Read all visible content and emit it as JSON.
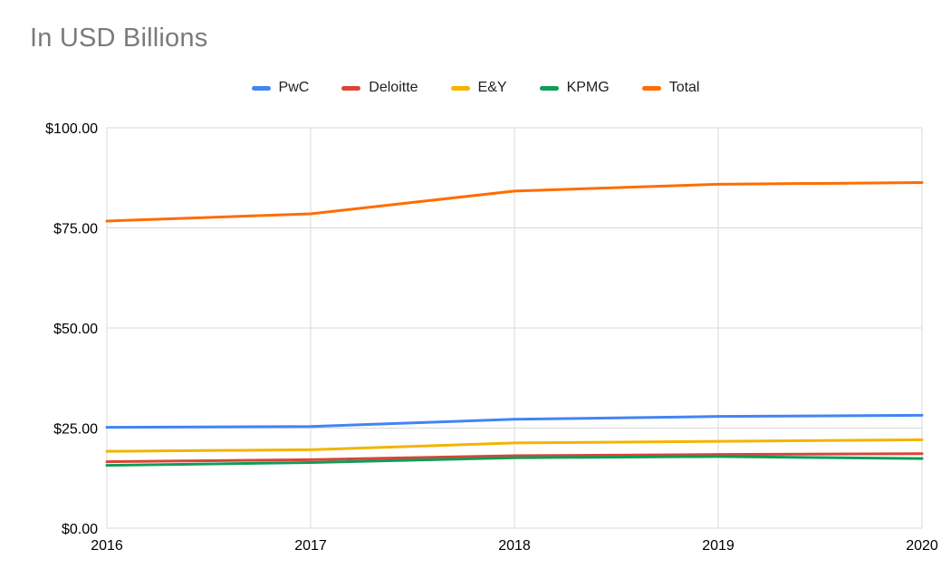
{
  "chart_data": {
    "type": "line",
    "title": "In USD Billions",
    "x_labels": [
      "2016",
      "2017",
      "2018",
      "2019",
      "2020"
    ],
    "series": [
      {
        "name": "PwC",
        "color": "#4285F4",
        "values": [
          25.2,
          25.4,
          27.2,
          27.9,
          28.2
        ]
      },
      {
        "name": "Deloitte",
        "color": "#DB4437",
        "values": [
          16.6,
          17.1,
          18.1,
          18.4,
          18.6
        ]
      },
      {
        "name": "E&Y",
        "color": "#F4B400",
        "values": [
          19.2,
          19.6,
          21.3,
          21.7,
          22.1
        ]
      },
      {
        "name": "KPMG",
        "color": "#0F9D58",
        "values": [
          15.7,
          16.4,
          17.6,
          17.9,
          17.4
        ]
      },
      {
        "name": "Total",
        "color": "#FF6D01",
        "values": [
          76.7,
          78.5,
          84.2,
          85.9,
          86.3
        ]
      }
    ],
    "ylim": [
      0,
      100
    ],
    "y_ticks": [
      {
        "label": "$0.00",
        "value": 0
      },
      {
        "label": "$25.00",
        "value": 25
      },
      {
        "label": "$50.00",
        "value": 50
      },
      {
        "label": "$75.00",
        "value": 75
      },
      {
        "label": "$100.00",
        "value": 100
      }
    ],
    "grid": true,
    "legend_position": "top"
  }
}
